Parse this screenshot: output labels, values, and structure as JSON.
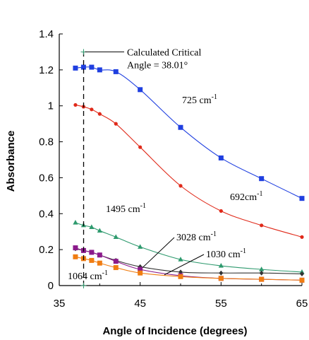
{
  "chart_data": {
    "type": "line",
    "xlabel": "Angle of Incidence (degrees)",
    "ylabel": "Absorbance",
    "xlim": [
      35,
      65
    ],
    "ylim": [
      0,
      1.4
    ],
    "xticks": [
      "35",
      "45",
      "55",
      "65"
    ],
    "yticks": [
      "0",
      "0.2",
      "0.4",
      "0.6",
      "0.8",
      "1",
      "1.2",
      "1.4"
    ],
    "xtick_values": [
      35,
      45,
      55,
      65
    ],
    "ytick_values": [
      0,
      0.2,
      0.4,
      0.6,
      0.8,
      1.0,
      1.2,
      1.4
    ],
    "grid": false,
    "series": [
      {
        "label": "725 cm",
        "sup": "-1",
        "color": "#1f3fe0",
        "marker": "square",
        "x": [
          37,
          38,
          39,
          40,
          42,
          45,
          50,
          55,
          60,
          65
        ],
        "y": [
          1.21,
          1.215,
          1.215,
          1.2,
          1.19,
          1.09,
          0.88,
          0.71,
          0.595,
          0.485
        ]
      },
      {
        "label": "692cm",
        "sup": "-1",
        "color": "#e02a1a",
        "marker": "circle",
        "x": [
          37,
          38,
          39,
          40,
          42,
          45,
          50,
          55,
          60,
          65
        ],
        "y": [
          1.005,
          0.995,
          0.98,
          0.955,
          0.9,
          0.77,
          0.555,
          0.415,
          0.335,
          0.27
        ]
      },
      {
        "label": "1495 cm",
        "sup": "-1",
        "color": "#2e9a6e",
        "marker": "triangle",
        "x": [
          37,
          38,
          39,
          40,
          42,
          45,
          50,
          55,
          60,
          65
        ],
        "y": [
          0.35,
          0.335,
          0.325,
          0.305,
          0.27,
          0.215,
          0.145,
          0.11,
          0.09,
          0.075
        ]
      },
      {
        "label": "3028 cm",
        "sup": "-1",
        "color": "#333333",
        "marker": "diamond",
        "x": [
          37,
          38,
          39,
          40,
          42,
          45,
          50,
          55,
          60,
          65
        ],
        "y": [
          0.205,
          0.195,
          0.185,
          0.17,
          0.14,
          0.105,
          0.075,
          0.07,
          0.07,
          0.065
        ]
      },
      {
        "label": "1030 cm",
        "sup": "-1",
        "color": "#8b1a8b",
        "marker": "square",
        "x": [
          37,
          38,
          39,
          40,
          42,
          45,
          50,
          55,
          60,
          65
        ],
        "y": [
          0.21,
          0.195,
          0.185,
          0.17,
          0.135,
          0.09,
          0.055,
          0.04,
          0.035,
          0.03
        ]
      },
      {
        "label": "1064 cm",
        "sup": "-1",
        "color": "#f07d12",
        "marker": "square",
        "x": [
          37,
          38,
          39,
          40,
          42,
          45,
          50,
          55,
          60,
          65
        ],
        "y": [
          0.16,
          0.15,
          0.14,
          0.125,
          0.1,
          0.07,
          0.05,
          0.04,
          0.035,
          0.03
        ]
      }
    ],
    "critical_angle": {
      "x": 38.01,
      "line_text": "Calculated     Critical",
      "value_text": "Angle = 38.01°"
    }
  }
}
